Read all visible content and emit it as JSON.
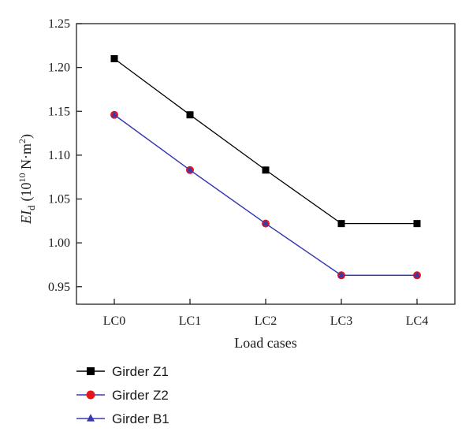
{
  "chart_data": {
    "type": "line",
    "categories": [
      "LC0",
      "LC1",
      "LC2",
      "LC3",
      "LC4"
    ],
    "series": [
      {
        "name": "Girder Z1",
        "values": [
          1.21,
          1.146,
          1.083,
          1.022,
          1.022
        ],
        "color": "#000000",
        "line_color": "#000000",
        "marker": "square"
      },
      {
        "name": "Girder Z2",
        "values": [
          1.146,
          1.083,
          1.022,
          0.963,
          0.963
        ],
        "color": "#e8161b",
        "line_color": "#3a3ab0",
        "marker": "circle"
      },
      {
        "name": "Girder B1",
        "values": [
          1.146,
          1.083,
          1.022,
          0.963,
          0.963
        ],
        "color": "#3a3ab0",
        "line_color": "#3a3ab0",
        "marker": "triangle"
      }
    ],
    "xlabel": "Load cases",
    "ylabel": {
      "main": "EI",
      "sub": "d",
      "unit_prefix": "(10",
      "unit_exp": "10",
      "unit_rest": " N·m",
      "unit_exp2": "2",
      "unit_close": ")"
    },
    "ylim": [
      0.93,
      1.25
    ],
    "yticks": [
      0.95,
      1.0,
      1.05,
      1.1,
      1.15,
      1.2,
      1.25
    ],
    "ytick_labels": [
      "0.95",
      "1.00",
      "1.05",
      "1.10",
      "1.15",
      "1.20",
      "1.25"
    ],
    "grid": false,
    "legend_position": "below-left"
  }
}
